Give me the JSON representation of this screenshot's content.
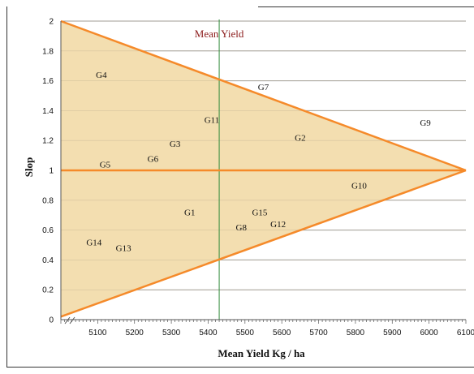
{
  "chart_data": {
    "type": "scatter",
    "xlabel": "Mean  Yield  Kg / ha",
    "ylabel": "Slop",
    "xlim": [
      5000,
      6100
    ],
    "ylim": [
      0,
      2
    ],
    "x_ticks": [
      5100,
      5200,
      5300,
      5400,
      5500,
      5600,
      5700,
      5800,
      5900,
      6000,
      6100
    ],
    "y_ticks": [
      0,
      0.2,
      0.4,
      0.6,
      0.8,
      1,
      1.2,
      1.4,
      1.6,
      1.8,
      2
    ],
    "grid": "horizontal",
    "mean_line": {
      "label": "Mean Yield",
      "x": 5430
    },
    "reference_line_y": 1,
    "triangle": {
      "apex": [
        6100,
        1
      ],
      "top": [
        5000,
        2
      ],
      "bottom": [
        5000,
        0.02
      ]
    },
    "points": [
      {
        "label": "G1",
        "x": 5350,
        "y": 0.72
      },
      {
        "label": "G2",
        "x": 5650,
        "y": 1.22
      },
      {
        "label": "G3",
        "x": 5310,
        "y": 1.18
      },
      {
        "label": "G4",
        "x": 5110,
        "y": 1.64
      },
      {
        "label": "G5",
        "x": 5120,
        "y": 1.04
      },
      {
        "label": "G6",
        "x": 5250,
        "y": 1.08
      },
      {
        "label": "G7",
        "x": 5550,
        "y": 1.56
      },
      {
        "label": "G8",
        "x": 5490,
        "y": 0.62
      },
      {
        "label": "G9",
        "x": 5990,
        "y": 1.32
      },
      {
        "label": "G10",
        "x": 5810,
        "y": 0.9
      },
      {
        "label": "G11",
        "x": 5410,
        "y": 1.34
      },
      {
        "label": "G12",
        "x": 5590,
        "y": 0.64
      },
      {
        "label": "G13",
        "x": 5170,
        "y": 0.48
      },
      {
        "label": "G14",
        "x": 5090,
        "y": 0.52
      },
      {
        "label": "G15",
        "x": 5540,
        "y": 0.72
      }
    ]
  }
}
